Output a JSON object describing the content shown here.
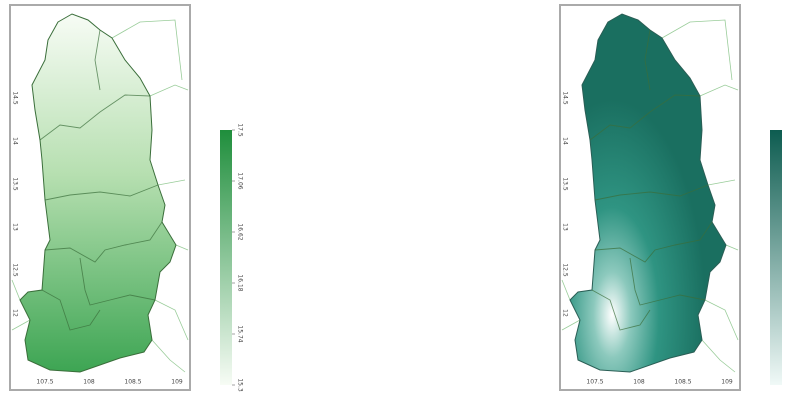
{
  "maps": [
    {
      "x_labels": [
        "107.5",
        "108",
        "108.5",
        "109"
      ],
      "y_labels": [
        "14.5",
        "14",
        "13.5",
        "13",
        "12.5",
        "12"
      ],
      "colorbar_ticks": [
        17.5,
        17.06,
        16.62,
        16.18,
        15.74,
        15.3
      ]
    },
    {
      "x_labels": [
        "107.5",
        "108",
        "108.5",
        "109"
      ],
      "y_labels": [
        "14.5",
        "14",
        "13.5",
        "13",
        "12.5",
        "12"
      ]
    }
  ]
}
